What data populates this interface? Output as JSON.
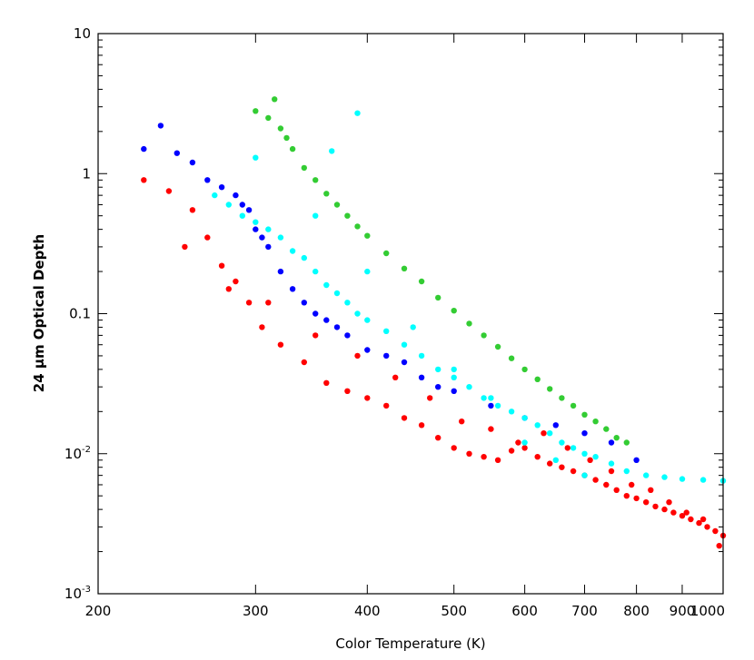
{
  "chart_data": {
    "type": "scatter",
    "title": "",
    "xlabel": "Color Temperature (K)",
    "ylabel": "24 μm Optical Depth",
    "xscale": "log",
    "yscale": "log",
    "xlim": [
      200,
      1000
    ],
    "ylim": [
      0.001,
      10
    ],
    "grid": false,
    "legend": "none",
    "x_ticks": [
      {
        "value": 200,
        "label": "200"
      },
      {
        "value": 300,
        "label": "300"
      },
      {
        "value": 400,
        "label": "400"
      },
      {
        "value": 500,
        "label": "500"
      },
      {
        "value": 600,
        "label": "600"
      },
      {
        "value": 700,
        "label": "700"
      },
      {
        "value": 800,
        "label": "800"
      },
      {
        "value": 900,
        "label": "900"
      },
      {
        "value": 1000,
        "label": "1000"
      }
    ],
    "y_ticks": [
      {
        "value": 10,
        "label": "10",
        "exp": ""
      },
      {
        "value": 1,
        "label": "1",
        "exp": ""
      },
      {
        "value": 0.1,
        "label": "0.1",
        "exp": ""
      },
      {
        "value": 0.01,
        "label": "10",
        "exp": "-2"
      },
      {
        "value": 0.001,
        "label": "10",
        "exp": "-3"
      }
    ],
    "series": [
      {
        "color": "#ff0000",
        "x": [
          225,
          240,
          255,
          265,
          275,
          285,
          295,
          305,
          320,
          340,
          360,
          380,
          400,
          420,
          440,
          460,
          480,
          500,
          520,
          540,
          560,
          580,
          600,
          620,
          640,
          660,
          680,
          700,
          720,
          740,
          760,
          780,
          800,
          820,
          840,
          860,
          880,
          900,
          920,
          940,
          960,
          980,
          1000,
          250,
          280,
          310,
          350,
          390,
          430,
          470,
          510,
          550,
          590,
          630,
          670,
          710,
          750,
          790,
          830,
          870,
          910,
          950,
          990
        ],
        "y": [
          0.9,
          0.75,
          0.55,
          0.35,
          0.22,
          0.17,
          0.12,
          0.08,
          0.06,
          0.045,
          0.032,
          0.028,
          0.025,
          0.022,
          0.018,
          0.016,
          0.013,
          0.011,
          0.01,
          0.0095,
          0.009,
          0.0105,
          0.011,
          0.0095,
          0.0085,
          0.008,
          0.0075,
          0.007,
          0.0065,
          0.006,
          0.0055,
          0.005,
          0.0048,
          0.0045,
          0.0042,
          0.004,
          0.0038,
          0.0036,
          0.0034,
          0.0032,
          0.003,
          0.0028,
          0.0026,
          0.3,
          0.15,
          0.12,
          0.07,
          0.05,
          0.035,
          0.025,
          0.017,
          0.015,
          0.012,
          0.014,
          0.011,
          0.009,
          0.0075,
          0.006,
          0.0055,
          0.0045,
          0.0038,
          0.0034,
          0.0022
        ]
      },
      {
        "color": "#0000ff",
        "x": [
          225,
          235,
          245,
          255,
          265,
          275,
          285,
          290,
          295,
          300,
          305,
          310,
          320,
          330,
          340,
          350,
          360,
          370,
          380,
          400,
          420,
          440,
          460,
          480,
          500,
          550,
          600,
          650,
          700,
          750,
          800
        ],
        "y": [
          1.5,
          2.2,
          1.4,
          1.2,
          0.9,
          0.8,
          0.7,
          0.6,
          0.55,
          0.4,
          0.35,
          0.3,
          0.2,
          0.15,
          0.12,
          0.1,
          0.09,
          0.08,
          0.07,
          0.055,
          0.05,
          0.045,
          0.035,
          0.03,
          0.028,
          0.022,
          0.018,
          0.016,
          0.014,
          0.012,
          0.009
        ]
      },
      {
        "color": "#00ffff",
        "x": [
          270,
          280,
          290,
          300,
          310,
          320,
          330,
          340,
          350,
          360,
          370,
          380,
          390,
          400,
          420,
          440,
          460,
          480,
          500,
          520,
          540,
          560,
          580,
          600,
          620,
          640,
          660,
          680,
          700,
          720,
          750,
          780,
          820,
          860,
          900,
          950,
          1000,
          300,
          350,
          400,
          450,
          500,
          550,
          600,
          650,
          700,
          390,
          365
        ],
        "y": [
          0.7,
          0.6,
          0.5,
          0.45,
          0.4,
          0.35,
          0.28,
          0.25,
          0.2,
          0.16,
          0.14,
          0.12,
          0.1,
          0.09,
          0.075,
          0.06,
          0.05,
          0.04,
          0.035,
          0.03,
          0.025,
          0.022,
          0.02,
          0.018,
          0.016,
          0.014,
          0.012,
          0.011,
          0.01,
          0.0095,
          0.0085,
          0.0075,
          0.007,
          0.0068,
          0.0066,
          0.0065,
          0.0064,
          1.3,
          0.5,
          0.2,
          0.08,
          0.04,
          0.025,
          0.012,
          0.009,
          0.007,
          2.7,
          1.45
        ]
      },
      {
        "color": "#33cc33",
        "x": [
          300,
          310,
          315,
          320,
          325,
          330,
          340,
          350,
          360,
          370,
          380,
          390,
          400,
          420,
          440,
          460,
          480,
          500,
          520,
          540,
          560,
          580,
          600,
          620,
          640,
          660,
          680,
          700,
          720,
          740,
          760,
          780
        ],
        "y": [
          2.8,
          2.5,
          3.4,
          2.1,
          1.8,
          1.5,
          1.1,
          0.9,
          0.72,
          0.6,
          0.5,
          0.42,
          0.36,
          0.27,
          0.21,
          0.17,
          0.13,
          0.105,
          0.085,
          0.07,
          0.058,
          0.048,
          0.04,
          0.034,
          0.029,
          0.025,
          0.022,
          0.019,
          0.017,
          0.015,
          0.013,
          0.012
        ]
      }
    ]
  }
}
